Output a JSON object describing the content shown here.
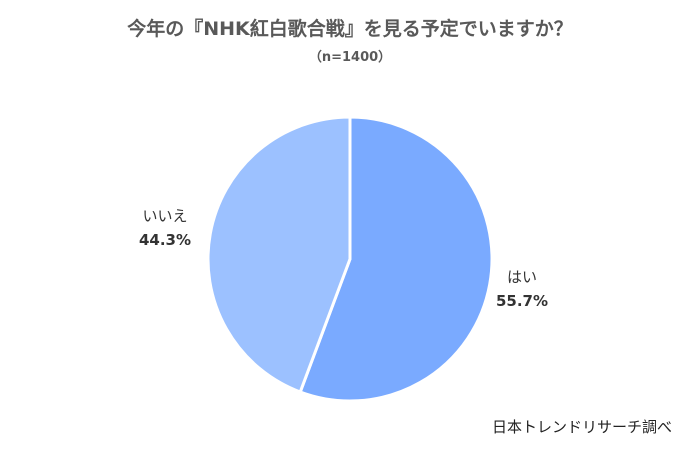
{
  "chart_data": {
    "type": "pie",
    "title": "今年の『NHK紅白歌合戦』を見る予定でいますか？",
    "subtitle": "（n=1400）",
    "slices": [
      {
        "label": "はい",
        "value": 55.7,
        "value_label": "55.7%",
        "color": "#7aaaff"
      },
      {
        "label": "いいえ",
        "value": 44.3,
        "value_label": "44.3%",
        "color": "#9cc1ff"
      }
    ],
    "start_angle_deg": 0,
    "direction": "clockwise",
    "legend": "none"
  },
  "source": "日本トレンドリサーチ調べ"
}
